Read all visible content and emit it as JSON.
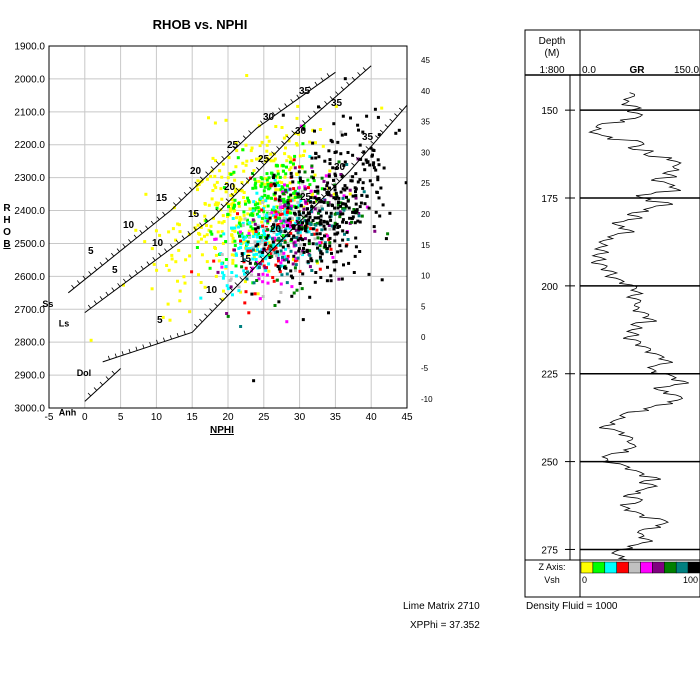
{
  "chart_data": [
    {
      "type": "scatter",
      "title": "RHOB vs. NPHI",
      "xlabel": "NPHI",
      "ylabel": "RHOB",
      "xlim": [
        -5,
        45
      ],
      "ylim": [
        1900,
        3000
      ],
      "y_inverted": true,
      "x_ticks": [
        "-5",
        "0",
        "5",
        "10",
        "15",
        "20",
        "25",
        "30",
        "35",
        "40",
        "45"
      ],
      "y_ticks": [
        "1900.0",
        "2000.0",
        "2100.0",
        "2200.0",
        "2300.0",
        "2400.0",
        "2500.0",
        "2600.0",
        "2700.0",
        "2800.0",
        "2900.0",
        "3000.0"
      ],
      "right_axis_ticks": [
        "45",
        "40",
        "35",
        "30",
        "25",
        "20",
        "15",
        "10",
        "5",
        "0",
        "-5",
        "-10"
      ],
      "grid": true,
      "lithology_lines": [
        {
          "name": "Ss",
          "points": [
            [
              -2.3,
              2650
            ],
            [
              12,
              2400
            ],
            [
              24,
              2150
            ],
            [
              35,
              1980
            ]
          ]
        },
        {
          "name": "Ls",
          "points": [
            [
              0,
              2710
            ],
            [
              18,
              2420
            ],
            [
              30,
              2150
            ],
            [
              40,
              1960
            ]
          ]
        },
        {
          "name": "Dol",
          "points": [
            [
              2.5,
              2860
            ],
            [
              15,
              2770
            ],
            [
              27,
              2500
            ],
            [
              37,
              2280
            ],
            [
              45,
              2080
            ]
          ]
        },
        {
          "name": "Anh",
          "points": [
            [
              0,
              2980
            ],
            [
              5,
              2880
            ]
          ]
        }
      ],
      "porosity_labels": {
        "Ss": [
          "5",
          "10",
          "15",
          "20",
          "25",
          "30",
          "35"
        ],
        "Ls": [
          "5",
          "10",
          "15",
          "20",
          "25",
          "30",
          "35"
        ],
        "Dol": [
          "5",
          "10",
          "15",
          "20",
          "25",
          "30",
          "35"
        ]
      },
      "color_scale": [
        "#ffff00",
        "#00ff00",
        "#00ffff",
        "#ff0000",
        "#c0c0c0",
        "#ff00ff",
        "#800080",
        "#008000",
        "#008080",
        "#000000"
      ],
      "clusters": [
        {
          "name": "yellow",
          "color": "#ffff00",
          "cx": 22,
          "cy": 2380,
          "sx": 6,
          "sy": 110,
          "n": 320
        },
        {
          "name": "green",
          "color": "#00ff00",
          "cx": 25,
          "cy": 2380,
          "sx": 3.5,
          "sy": 70,
          "n": 180
        },
        {
          "name": "cyan",
          "color": "#00ffff",
          "cx": 25,
          "cy": 2470,
          "sx": 3,
          "sy": 60,
          "n": 160
        },
        {
          "name": "red",
          "color": "#ff0000",
          "cx": 28,
          "cy": 2470,
          "sx": 3.5,
          "sy": 80,
          "n": 80
        },
        {
          "name": "gray",
          "color": "#c0c0c0",
          "cx": 28,
          "cy": 2460,
          "sx": 3.5,
          "sy": 70,
          "n": 90
        },
        {
          "name": "magenta",
          "color": "#ff00ff",
          "cx": 29,
          "cy": 2430,
          "sx": 4,
          "sy": 110,
          "n": 60
        },
        {
          "name": "purple",
          "color": "#800080",
          "cx": 30,
          "cy": 2450,
          "sx": 4,
          "sy": 90,
          "n": 60
        },
        {
          "name": "darkgreen",
          "color": "#008000",
          "cx": 31,
          "cy": 2440,
          "sx": 4,
          "sy": 90,
          "n": 70
        },
        {
          "name": "teal",
          "color": "#008080",
          "cx": 30,
          "cy": 2470,
          "sx": 4,
          "sy": 70,
          "n": 70
        },
        {
          "name": "black",
          "color": "#000000",
          "cx": 34,
          "cy": 2400,
          "sx": 4.5,
          "sy": 110,
          "n": 350
        }
      ]
    },
    {
      "type": "line",
      "name": "GR",
      "depth_header": "Depth",
      "depth_unit": "(M)",
      "scale": "1:800",
      "gr_min": "0.0",
      "gr_max": "150.0",
      "depth_range": [
        140,
        278
      ],
      "depth_ticks": [
        "150",
        "175",
        "200",
        "225",
        "250",
        "275"
      ],
      "depth_markers": [
        150,
        175,
        200,
        225,
        250,
        275
      ],
      "gr_values": [
        62,
        68,
        55,
        58,
        70,
        65,
        72,
        75,
        50,
        28,
        20,
        18,
        22,
        40,
        72,
        80,
        60,
        92,
        80,
        115,
        120,
        122,
        118,
        110,
        115,
        95,
        105,
        118,
        120,
        95,
        70,
        88,
        110,
        95,
        80,
        65,
        72,
        60,
        40,
        55,
        62,
        48,
        35,
        30,
        28,
        25,
        30,
        22,
        26,
        20,
        28,
        32,
        40,
        38,
        45,
        55,
        65,
        70,
        72,
        65,
        70,
        75,
        68,
        72,
        80,
        85,
        90,
        70,
        72,
        65,
        68,
        60,
        70,
        75,
        82,
        88,
        95,
        105,
        110,
        100,
        85,
        95,
        110,
        120,
        130,
        118,
        92,
        110,
        120,
        128,
        110,
        95,
        80,
        60,
        50,
        48,
        38,
        30,
        42,
        55,
        60,
        65,
        62,
        70,
        55,
        40,
        28,
        35,
        50,
        62,
        70,
        80,
        95,
        80,
        90,
        85,
        70,
        60,
        72,
        75,
        50,
        62,
        70,
        80,
        100,
        110,
        95,
        80,
        72,
        80,
        85,
        78,
        60,
        50,
        40,
        55,
        60
      ],
      "z_axis_label": "Z Axis:",
      "vsh_label": "Vsh",
      "vsh_min": "0",
      "vsh_max": "100"
    }
  ],
  "footer": {
    "lime_matrix": "Lime Matrix  2710",
    "xpphi": "XPPhi = 37.352",
    "density_fluid": "Density Fluid =  1000"
  }
}
